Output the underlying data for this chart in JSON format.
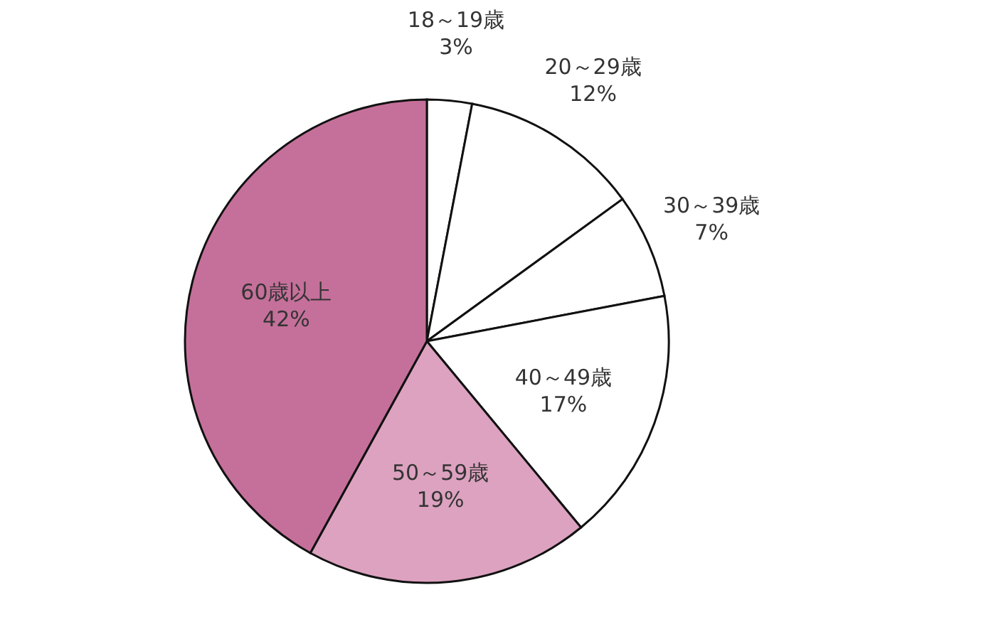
{
  "chart_data": {
    "type": "pie",
    "categories": [
      "18～19歳",
      "20～29歳",
      "30～39歳",
      "40～49歳",
      "50～59歳",
      "60歳以上"
    ],
    "values": [
      3,
      12,
      7,
      17,
      19,
      42
    ],
    "value_labels": [
      "3%",
      "12%",
      "7%",
      "17%",
      "19%",
      "42%"
    ],
    "colors": [
      "#ffffff",
      "#ffffff",
      "#ffffff",
      "#ffffff",
      "#dca2bf",
      "#c5709a"
    ]
  }
}
